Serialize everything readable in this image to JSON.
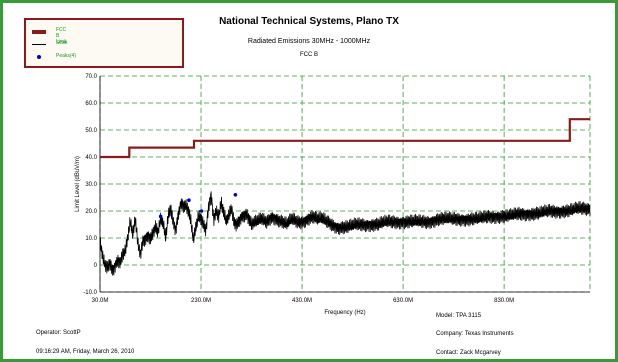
{
  "header": {
    "title": "National Technical Systems, Plano TX",
    "subtitle": "Radiated Emissions 30MHz - 1000MHz",
    "standard": "FCC B"
  },
  "legend": {
    "items": [
      {
        "label": "FCC B Limit",
        "color": "#8b1a1a",
        "style": "thick-line"
      },
      {
        "label": "Scan",
        "color": "#000000",
        "style": "line"
      },
      {
        "label": "Peaks(4)",
        "color": "#0000cc",
        "style": "marker"
      }
    ]
  },
  "footer": {
    "operator": "Operator: ScottP",
    "datetime": "09:16:29 AM, Friday, March 26, 2010",
    "model": "Model: TPA 3115",
    "company": "Company: Texas Instruments",
    "contact": "Contact: Zack Mcgarvey"
  },
  "colors": {
    "frame": "#3a9a3a",
    "grid": "#2e9a2e",
    "limit": "#8b1a1a",
    "scan": "#000000",
    "peaks": "#0000cc"
  },
  "chart_data": {
    "type": "line",
    "title": "National Technical Systems, Plano TX",
    "subtitle": "Radiated Emissions 30MHz - 1000MHz",
    "xlabel": "Frequency (Hz)",
    "ylabel": "Limit Level (dBuV/m)",
    "xlim": [
      30,
      1000
    ],
    "ylim": [
      -10,
      70
    ],
    "xticks": [
      30,
      230,
      430,
      630,
      830
    ],
    "xtick_labels": [
      "30.0M",
      "230.0M",
      "430.0M",
      "630.0M",
      "830.0M"
    ],
    "yticks": [
      -10,
      0,
      10,
      20,
      30,
      40,
      50,
      60,
      70
    ],
    "ytick_labels": [
      "-10.0",
      "0",
      "10.0",
      "20.0",
      "30.0",
      "40.0",
      "50.0",
      "60.0",
      "70.0"
    ],
    "grid": true,
    "legend_position": "top-left",
    "series": [
      {
        "name": "FCC B Limit",
        "type": "step",
        "x": [
          30,
          88,
          88,
          216,
          216,
          960,
          960,
          1000
        ],
        "y": [
          40,
          40,
          43.5,
          43.5,
          46,
          46,
          54,
          54
        ]
      },
      {
        "name": "Scan",
        "x": [
          30,
          35,
          40,
          45,
          50,
          55,
          60,
          65,
          70,
          75,
          80,
          85,
          90,
          95,
          100,
          105,
          110,
          115,
          120,
          125,
          130,
          135,
          140,
          145,
          150,
          155,
          160,
          165,
          170,
          175,
          180,
          185,
          190,
          195,
          200,
          205,
          210,
          215,
          220,
          225,
          230,
          235,
          240,
          245,
          250,
          255,
          260,
          265,
          270,
          275,
          280,
          285,
          290,
          295,
          300,
          310,
          320,
          330,
          340,
          350,
          360,
          370,
          380,
          390,
          400,
          410,
          420,
          430,
          440,
          450,
          460,
          470,
          480,
          490,
          500,
          520,
          540,
          560,
          580,
          600,
          620,
          640,
          660,
          680,
          700,
          720,
          740,
          760,
          780,
          800,
          820,
          840,
          860,
          880,
          900,
          920,
          940,
          960,
          980,
          1000
        ],
        "y": [
          9,
          3,
          0,
          -1,
          1,
          -2,
          0,
          2,
          1,
          4,
          5,
          10,
          16,
          11,
          17,
          8,
          4,
          9,
          10,
          11,
          10,
          12,
          14,
          12,
          17,
          15,
          10,
          18,
          21,
          16,
          13,
          19,
          23,
          22,
          22,
          20,
          16,
          9,
          14,
          18,
          17,
          15,
          13,
          22,
          26,
          17,
          20,
          18,
          23,
          19,
          16,
          18,
          21,
          16,
          15,
          18,
          19,
          15,
          16,
          17,
          16,
          18,
          17,
          16,
          15,
          17,
          16,
          16,
          17,
          18,
          17,
          17,
          16,
          15,
          14,
          14,
          15,
          15,
          15,
          16,
          16,
          16,
          16,
          16,
          17,
          17,
          17,
          17,
          17,
          18,
          18,
          18,
          19,
          19,
          19,
          20,
          20,
          20,
          21,
          21
        ]
      },
      {
        "name": "Peaks(4)",
        "type": "scatter",
        "x": [
          150,
          206,
          231,
          298
        ],
        "y": [
          18,
          24,
          20,
          26
        ]
      }
    ]
  }
}
